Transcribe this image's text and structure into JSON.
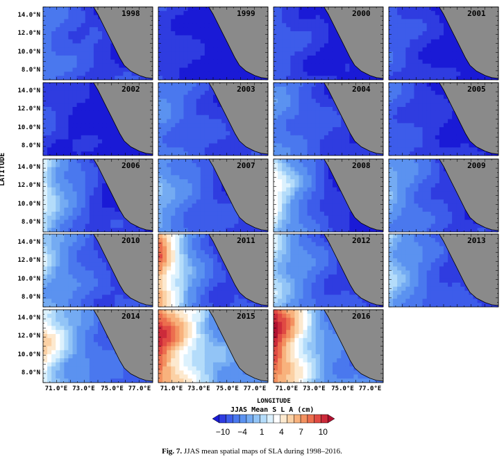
{
  "chart_data": {
    "type": "heatmap",
    "title": "",
    "xlabel": "LONGITUDE",
    "ylabel": "LATITUDE",
    "x_ticks": [
      "71.0°E",
      "73.0°E",
      "75.0°E",
      "77.0°E"
    ],
    "y_ticks": [
      "14.0°N",
      "12.0°N",
      "10.0°N",
      "8.0°N"
    ],
    "xlim": [
      70,
      78
    ],
    "ylim": [
      7,
      15
    ],
    "colorbar": {
      "title": "JJAS Mean S L A (cm)",
      "ticks": [
        "−10",
        "−4",
        "1",
        "4",
        "7",
        "10"
      ],
      "levels": [
        -12,
        -10,
        -8,
        -6,
        -4,
        -2,
        -1,
        0,
        1,
        2,
        3,
        4,
        5,
        6,
        7,
        8,
        9,
        10,
        12
      ],
      "colors": [
        "#1a1ad6",
        "#2f3ce0",
        "#3d5cea",
        "#4a78ee",
        "#5b92f0",
        "#74abf2",
        "#92c4f6",
        "#b4dcfa",
        "#dcf1fd",
        "#ffffff",
        "#fde9cf",
        "#fbd1a5",
        "#f8b27d",
        "#f39160",
        "#ec6e4e",
        "#e04a43",
        "#cc2a3a",
        "#b01030"
      ]
    },
    "panels": [
      {
        "year": "1998",
        "mean": -6.2,
        "west": -4.5,
        "southeast": -9.0
      },
      {
        "year": "1999",
        "mean": -9.5,
        "west": -8.0,
        "southeast": -11.5
      },
      {
        "year": "2000",
        "mean": -8.4,
        "west": -6.5,
        "southeast": -10.5
      },
      {
        "year": "2001",
        "mean": -8.6,
        "west": -6.5,
        "southeast": -10.5
      },
      {
        "year": "2002",
        "mean": -9.4,
        "west": -7.5,
        "southeast": -11.5
      },
      {
        "year": "2003",
        "mean": -5.8,
        "west": -3.5,
        "southeast": -8.5
      },
      {
        "year": "2004",
        "mean": -5.6,
        "west": -3.0,
        "southeast": -8.5
      },
      {
        "year": "2005",
        "mean": -8.0,
        "west": -6.0,
        "southeast": -10.0
      },
      {
        "year": "2006",
        "mean": -3.8,
        "west": 2.5,
        "southeast": -9.0
      },
      {
        "year": "2007",
        "mean": -3.4,
        "west": -0.5,
        "southeast": -8.5
      },
      {
        "year": "2008",
        "mean": -3.6,
        "west": 3.5,
        "southeast": -8.5
      },
      {
        "year": "2009",
        "mean": -4.6,
        "west": -1.0,
        "southeast": -8.5
      },
      {
        "year": "2010",
        "mean": -3.8,
        "west": 0.8,
        "southeast": -7.5
      },
      {
        "year": "2011",
        "mean": -0.5,
        "west": 8.0,
        "southeast": -7.5
      },
      {
        "year": "2012",
        "mean": -3.2,
        "west": 1.5,
        "southeast": -7.5
      },
      {
        "year": "2013",
        "mean": -4.6,
        "west": 0.5,
        "southeast": -7.0
      },
      {
        "year": "2014",
        "mean": 0.8,
        "west": 4.5,
        "southeast": -6.5
      },
      {
        "year": "2015",
        "mean": 4.2,
        "west": 9.5,
        "southeast": -2.0
      },
      {
        "year": "2016",
        "mean": 4.0,
        "west": 10.5,
        "southeast": -4.0
      }
    ]
  },
  "caption": {
    "label": "Fig. 7.",
    "text": "JJAS mean spatial maps of SLA during 1998–2016."
  }
}
